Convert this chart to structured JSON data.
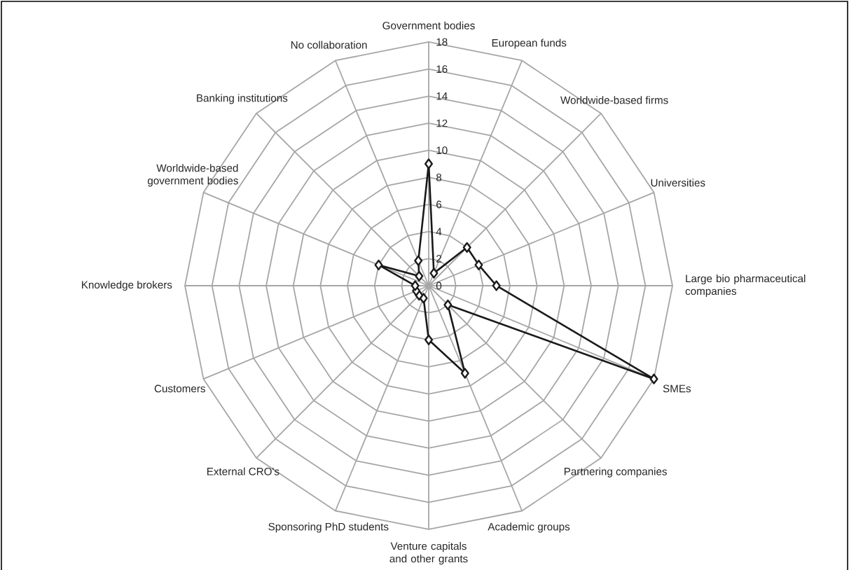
{
  "chart_data": {
    "type": "radar",
    "categories": [
      "Government bodies",
      "European funds",
      "Worldwide-based firms",
      "Universities",
      "Large bio pharmaceutical companies",
      "SMEs",
      "Partnering companies",
      "Academic groups",
      "Venture capitals and other grants",
      "Sponsoring PhD students",
      "External CRO's",
      "Customers",
      "Knowledge brokers",
      "Worldwide-based government bodies",
      "Banking institutions",
      "No collaboration"
    ],
    "series": [
      {
        "color": "#1a1a1a",
        "values": [
          9,
          1,
          4,
          4,
          5,
          18,
          2,
          7,
          4,
          1,
          1,
          1,
          1,
          4,
          1,
          2
        ]
      }
    ],
    "ylim": [
      0,
      18
    ],
    "yticks": [
      0,
      2,
      4,
      6,
      8,
      10,
      12,
      14,
      16,
      18
    ],
    "grid": true,
    "marker": "diamond"
  }
}
